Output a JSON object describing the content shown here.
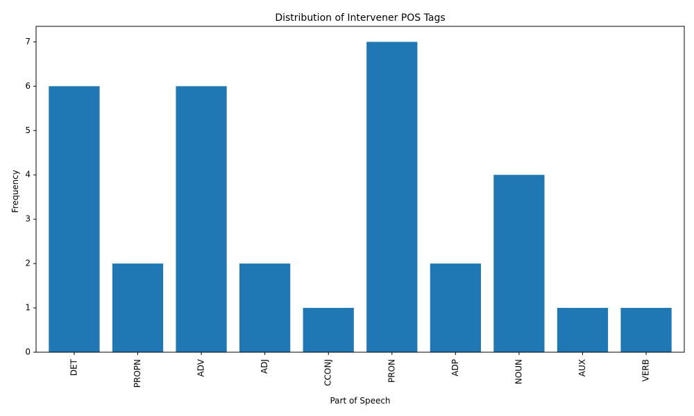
{
  "chart_data": {
    "type": "bar",
    "title": "Distribution of Intervener POS Tags",
    "xlabel": "Part of Speech",
    "ylabel": "Frequency",
    "categories": [
      "DET",
      "PROPN",
      "ADV",
      "ADJ",
      "CCONJ",
      "PRON",
      "ADP",
      "NOUN",
      "AUX",
      "VERB"
    ],
    "values": [
      6,
      2,
      6,
      2,
      1,
      7,
      2,
      4,
      1,
      1
    ],
    "ylim": [
      0,
      7.35
    ],
    "yticks": [
      0,
      1,
      2,
      3,
      4,
      5,
      6,
      7
    ],
    "bar_color": "#1f77b4",
    "grid": false,
    "legend": "none",
    "x_tick_rotation": "vertical"
  }
}
